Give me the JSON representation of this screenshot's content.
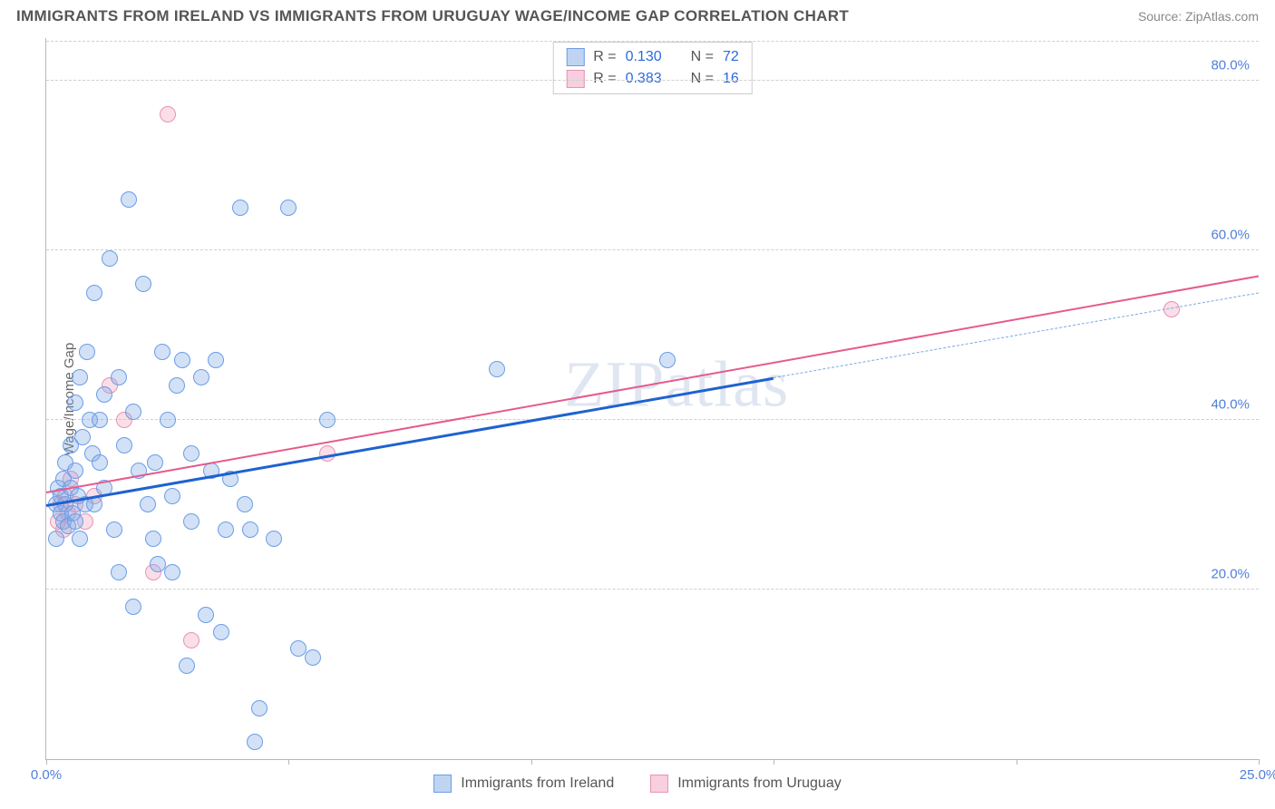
{
  "title": "IMMIGRANTS FROM IRELAND VS IMMIGRANTS FROM URUGUAY WAGE/INCOME GAP CORRELATION CHART",
  "source_label": "Source: ZipAtlas.com",
  "watermark": "ZIPatlas",
  "yaxis_title": "Wage/Income Gap",
  "chart": {
    "type": "scatter",
    "xlim": [
      0,
      25
    ],
    "ylim": [
      0,
      85
    ],
    "xticks": [
      0,
      5,
      10,
      15,
      20,
      25
    ],
    "xtick_labels": [
      "0.0%",
      "",
      "",
      "",
      "",
      "25.0%"
    ],
    "yticks": [
      20,
      40,
      60,
      80
    ],
    "ytick_labels": [
      "20.0%",
      "40.0%",
      "60.0%",
      "80.0%"
    ],
    "grid_color": "#d0d0d0",
    "axis_color": "#b8b8b8",
    "background_color": "#ffffff"
  },
  "series_a": {
    "label": "Immigrants from Ireland",
    "color_fill": "rgba(130,170,230,0.35)",
    "color_stroke": "#6a9de8",
    "reg_color_solid": "#1e62d0",
    "reg_color_dash": "#7aa7e6",
    "marker_radius": 9,
    "R": "0.130",
    "N": "72",
    "regression": {
      "x1": 0,
      "y1": 30,
      "x2_solid": 15,
      "y2_solid": 45,
      "x2_dash": 25,
      "y2_dash": 55
    },
    "points": [
      [
        0.2,
        30
      ],
      [
        0.25,
        32
      ],
      [
        0.3,
        29
      ],
      [
        0.3,
        31
      ],
      [
        0.35,
        28
      ],
      [
        0.35,
        33
      ],
      [
        0.4,
        30
      ],
      [
        0.4,
        35
      ],
      [
        0.45,
        27.5
      ],
      [
        0.5,
        32
      ],
      [
        0.5,
        37
      ],
      [
        0.55,
        29
      ],
      [
        0.6,
        42
      ],
      [
        0.6,
        34
      ],
      [
        0.65,
        31
      ],
      [
        0.7,
        45
      ],
      [
        0.7,
        26
      ],
      [
        0.75,
        38
      ],
      [
        0.8,
        30
      ],
      [
        0.85,
        48
      ],
      [
        0.9,
        40
      ],
      [
        0.95,
        36
      ],
      [
        1.0,
        55
      ],
      [
        1.0,
        30
      ],
      [
        1.1,
        35
      ],
      [
        1.1,
        40
      ],
      [
        1.2,
        32
      ],
      [
        1.3,
        59
      ],
      [
        1.4,
        27
      ],
      [
        1.5,
        45
      ],
      [
        1.5,
        22
      ],
      [
        1.6,
        37
      ],
      [
        1.7,
        66
      ],
      [
        1.8,
        41
      ],
      [
        1.9,
        34
      ],
      [
        2.0,
        56
      ],
      [
        2.1,
        30
      ],
      [
        2.2,
        26
      ],
      [
        2.25,
        35
      ],
      [
        2.3,
        23
      ],
      [
        2.4,
        48
      ],
      [
        2.5,
        40
      ],
      [
        2.6,
        31
      ],
      [
        2.7,
        44
      ],
      [
        2.8,
        47
      ],
      [
        2.9,
        11
      ],
      [
        3.0,
        36
      ],
      [
        3.0,
        28
      ],
      [
        3.2,
        45
      ],
      [
        3.3,
        17
      ],
      [
        3.4,
        34
      ],
      [
        3.5,
        47
      ],
      [
        3.6,
        15
      ],
      [
        3.7,
        27
      ],
      [
        3.8,
        33
      ],
      [
        4.0,
        65
      ],
      [
        4.1,
        30
      ],
      [
        4.2,
        27
      ],
      [
        4.3,
        2
      ],
      [
        4.4,
        6
      ],
      [
        4.7,
        26
      ],
      [
        5.0,
        65
      ],
      [
        5.2,
        13
      ],
      [
        5.5,
        12
      ],
      [
        5.8,
        40
      ],
      [
        9.3,
        46
      ],
      [
        12.8,
        47
      ],
      [
        0.2,
        26
      ],
      [
        0.6,
        28
      ],
      [
        1.2,
        43
      ],
      [
        1.8,
        18
      ],
      [
        2.6,
        22
      ]
    ]
  },
  "series_b": {
    "label": "Immigrants from Uruguay",
    "color_fill": "rgba(240,160,190,0.35)",
    "color_stroke": "#e893b4",
    "reg_color": "#e65a8c",
    "marker_radius": 9,
    "R": "0.383",
    "N": "16",
    "regression": {
      "x1": 0,
      "y1": 31.5,
      "x2": 25,
      "y2": 57
    },
    "points": [
      [
        0.25,
        28
      ],
      [
        0.3,
        30
      ],
      [
        0.35,
        27
      ],
      [
        0.4,
        31
      ],
      [
        0.45,
        29
      ],
      [
        0.5,
        33
      ],
      [
        0.6,
        30
      ],
      [
        0.8,
        28
      ],
      [
        1.0,
        31
      ],
      [
        1.3,
        44
      ],
      [
        1.6,
        40
      ],
      [
        2.2,
        22
      ],
      [
        2.5,
        76
      ],
      [
        3.0,
        14
      ],
      [
        5.8,
        36
      ],
      [
        23.2,
        53
      ]
    ]
  },
  "legend_top": {
    "r_label": "R =",
    "n_label": "N ="
  },
  "bottom_legend": {
    "a": "Immigrants from Ireland",
    "b": "Immigrants from Uruguay"
  }
}
